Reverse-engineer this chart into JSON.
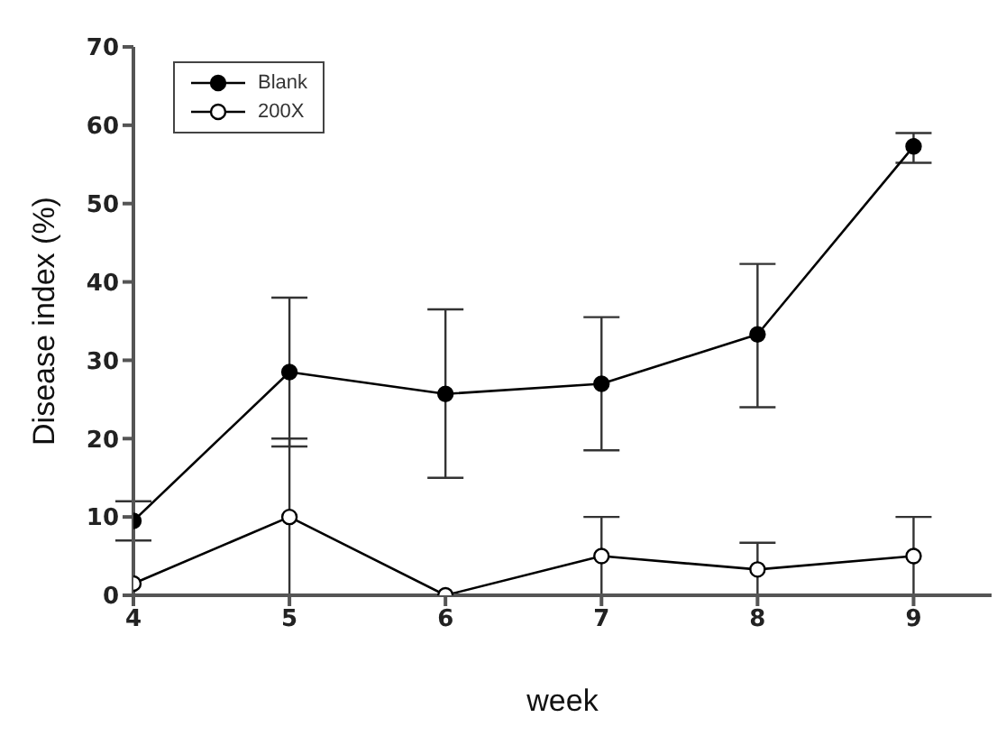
{
  "chart_data": {
    "type": "line",
    "xlabel": "week",
    "ylabel": "Disease index (%)",
    "x": [
      4,
      5,
      6,
      7,
      8,
      9
    ],
    "xlim": [
      4,
      9.5
    ],
    "xticks": [
      4,
      5,
      6,
      7,
      8,
      9
    ],
    "ylim": [
      0,
      70
    ],
    "yticks": [
      0,
      10,
      20,
      30,
      40,
      50,
      60,
      70
    ],
    "grid": false,
    "legend": "top left",
    "marker": "circle",
    "line_style": "solid",
    "series": [
      {
        "name": "Blank",
        "color": "#000000",
        "values": [
          9.5,
          28.5,
          25.7,
          27,
          33.3,
          57.3
        ],
        "errors": [
          [
            7,
            12
          ],
          [
            19,
            38
          ],
          [
            15,
            36.5
          ],
          [
            18.5,
            35.5
          ],
          [
            24,
            42.3
          ],
          [
            55.2,
            59
          ]
        ]
      },
      {
        "name": "200X",
        "color": "#000000",
        "values": [
          1.5,
          10,
          0,
          5,
          3.3,
          5
        ],
        "errors": [
          null,
          [
            0,
            20
          ],
          null,
          [
            0,
            10
          ],
          [
            0,
            6.7
          ],
          [
            0,
            10
          ]
        ]
      }
    ]
  }
}
